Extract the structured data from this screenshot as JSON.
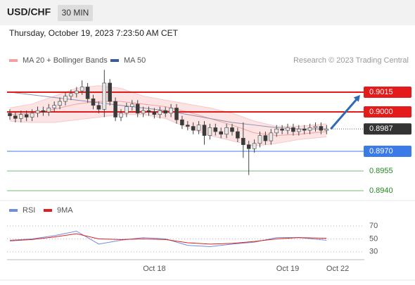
{
  "header": {
    "symbol": "USD/CHF",
    "interval": "30 MIN",
    "timestamp": "Thursday, October 19, 2023 7:23:50 AM CET"
  },
  "chart_data": [
    {
      "type": "candlestick",
      "legend": [
        {
          "name": "MA 20 + Bollinger Bands",
          "color": "#f4a0a0"
        },
        {
          "name": "MA 50",
          "color": "#3d5a99"
        }
      ],
      "credit": "Research © 2023 Trading Central",
      "categories": [
        null,
        null,
        null,
        null,
        null,
        null,
        null,
        null,
        null,
        null,
        null,
        null,
        null,
        null,
        null,
        null,
        null,
        null,
        null,
        null,
        null,
        null,
        null,
        null,
        null,
        null,
        "Oct 18",
        null,
        null,
        null,
        null,
        null,
        null,
        null,
        null,
        null,
        null,
        null,
        null,
        null,
        null,
        null,
        null,
        null,
        null,
        null,
        null,
        null,
        null,
        null,
        "Oct 19",
        null,
        null,
        null,
        null,
        null,
        null,
        null,
        null,
        "Oct 22"
      ],
      "open": [
        0.8999,
        0.8997,
        0.8995,
        0.8998,
        0.8996,
        0.8999,
        0.9001,
        0.9,
        0.9003,
        0.9005,
        0.9008,
        0.9012,
        0.9014,
        0.9016,
        0.9019,
        0.901,
        0.9005,
        0.9002,
        0.9022,
        0.9008,
        0.8996,
        0.8999,
        0.9004,
        0.9006,
        0.8999,
        0.9001,
        0.9,
        0.8998,
        0.9001,
        0.8999,
        0.9003,
        0.8994,
        0.899,
        0.8989,
        0.8986,
        0.899,
        0.8982,
        0.8988,
        0.8985,
        0.8983,
        0.8988,
        0.8985,
        0.898,
        0.8975,
        0.8972,
        0.8976,
        0.8982,
        0.8978,
        0.8984,
        0.8987,
        0.8986,
        0.8988,
        0.8985,
        0.8987,
        0.8986,
        0.8988,
        0.8989,
        0.8986,
        null,
        null
      ],
      "high": [
        0.9002,
        0.9,
        0.9001,
        0.9001,
        0.9002,
        0.9004,
        0.9004,
        0.9006,
        0.9008,
        0.9011,
        0.9015,
        0.9017,
        0.9019,
        0.9024,
        0.9022,
        0.9013,
        0.9008,
        0.9032,
        0.9025,
        0.9011,
        0.9002,
        0.9007,
        0.9009,
        0.9009,
        0.9004,
        0.9004,
        0.9003,
        0.9004,
        0.9004,
        0.9006,
        0.9006,
        0.8997,
        0.8993,
        0.8992,
        0.8993,
        0.8993,
        0.8991,
        0.8991,
        0.8988,
        0.8991,
        0.8991,
        0.8988,
        0.8992,
        0.8978,
        0.8979,
        0.8985,
        0.8985,
        0.8987,
        0.899,
        0.899,
        0.8991,
        0.8991,
        0.899,
        0.899,
        0.8991,
        0.8992,
        0.8992,
        0.899,
        null,
        null
      ],
      "low": [
        0.8994,
        0.8992,
        0.8992,
        0.8993,
        0.8993,
        0.8996,
        0.8997,
        0.8997,
        0.9,
        0.9002,
        0.9005,
        0.9009,
        0.9011,
        0.9013,
        0.9007,
        0.9002,
        0.8999,
        0.8996,
        0.9005,
        0.8993,
        0.8993,
        0.8996,
        0.9001,
        0.8996,
        0.8996,
        0.8997,
        0.8995,
        0.8995,
        0.8996,
        0.8996,
        0.8991,
        0.8987,
        0.8986,
        0.8983,
        0.8983,
        0.8975,
        0.8979,
        0.8982,
        0.898,
        0.898,
        0.8982,
        0.8977,
        0.8965,
        0.8952,
        0.8969,
        0.8973,
        0.8975,
        0.8975,
        0.8981,
        0.8983,
        0.8983,
        0.8982,
        0.8982,
        0.8983,
        0.8983,
        0.8985,
        0.8983,
        0.8983,
        null,
        null
      ],
      "close": [
        0.8997,
        0.8995,
        0.8998,
        0.8996,
        0.8999,
        0.9001,
        0.9,
        0.9003,
        0.9005,
        0.9008,
        0.9012,
        0.9014,
        0.9016,
        0.9019,
        0.901,
        0.9005,
        0.9002,
        0.9022,
        0.9008,
        0.8996,
        0.8999,
        0.9004,
        0.9006,
        0.8999,
        0.9001,
        0.9,
        0.8998,
        0.9001,
        0.8999,
        0.9003,
        0.8994,
        0.899,
        0.8989,
        0.8986,
        0.899,
        0.8982,
        0.8988,
        0.8985,
        0.8983,
        0.8988,
        0.8985,
        0.898,
        0.8975,
        0.8972,
        0.8976,
        0.8982,
        0.8978,
        0.8984,
        0.8987,
        0.8986,
        0.8988,
        0.8985,
        0.8987,
        0.8986,
        0.8988,
        0.8989,
        0.8986,
        0.8987,
        null,
        null
      ],
      "indicator_x": [
        0,
        4,
        8,
        12,
        16,
        20,
        24,
        28,
        32,
        36,
        40,
        44,
        48,
        52,
        57
      ],
      "ma20": [
        0.8998,
        0.8999,
        0.9002,
        0.9006,
        0.9008,
        0.9008,
        0.9006,
        0.9004,
        0.9,
        0.8995,
        0.899,
        0.8984,
        0.8982,
        0.8983,
        0.8985
      ],
      "upper_band": [
        0.9003,
        0.9006,
        0.9012,
        0.9018,
        0.902,
        0.9018,
        0.9012,
        0.9009,
        0.9006,
        0.9003,
        0.8999,
        0.8993,
        0.8989,
        0.8989,
        0.8991
      ],
      "lower_band": [
        0.8993,
        0.8992,
        0.8992,
        0.8994,
        0.8996,
        0.8998,
        0.8998,
        0.8995,
        0.8988,
        0.8982,
        0.8978,
        0.8974,
        0.8976,
        0.8979,
        0.8981
      ],
      "ma50": [
        0.9015,
        0.9013,
        0.9011,
        0.9009,
        0.9007,
        0.9005,
        0.9003,
        0.9001,
        0.8998,
        0.8995,
        0.8992,
        0.899,
        0.8988,
        0.8987,
        0.8987
      ],
      "levels": [
        {
          "value": 0.9015,
          "label": "0.9015",
          "color": "#e31b1b",
          "style": "box"
        },
        {
          "value": 0.9,
          "label": "0.9000",
          "color": "#e31b1b",
          "style": "box"
        },
        {
          "value": 0.8987,
          "label": "0.8987",
          "color": "#333333",
          "style": "current"
        },
        {
          "value": 0.897,
          "label": "0.8970",
          "color": "#3b7be8",
          "style": "box"
        },
        {
          "value": 0.8955,
          "label": "0.8955",
          "color": "#1f8a1f",
          "style": "text"
        },
        {
          "value": 0.894,
          "label": "0.8940",
          "color": "#1f8a1f",
          "style": "text"
        }
      ],
      "target": 0.9015,
      "ylim": [
        0.89325,
        0.90477
      ]
    },
    {
      "type": "line",
      "title": "RSI",
      "series": [
        {
          "name": "RSI",
          "color": "#6f8ee0",
          "values": [
            48,
            50,
            55,
            62,
            42,
            48,
            52,
            50,
            40,
            38,
            42,
            45,
            52,
            52,
            48
          ]
        },
        {
          "name": "9MA",
          "color": "#e02020",
          "values": [
            47,
            49,
            53,
            58,
            50,
            49,
            50,
            49,
            44,
            42,
            43,
            46,
            50,
            52,
            51
          ]
        }
      ],
      "x": [
        0,
        4,
        8,
        12,
        16,
        20,
        24,
        28,
        32,
        36,
        40,
        44,
        48,
        52,
        57
      ],
      "ylim": [
        20,
        80
      ],
      "yticks": [
        70,
        50,
        30
      ]
    }
  ]
}
